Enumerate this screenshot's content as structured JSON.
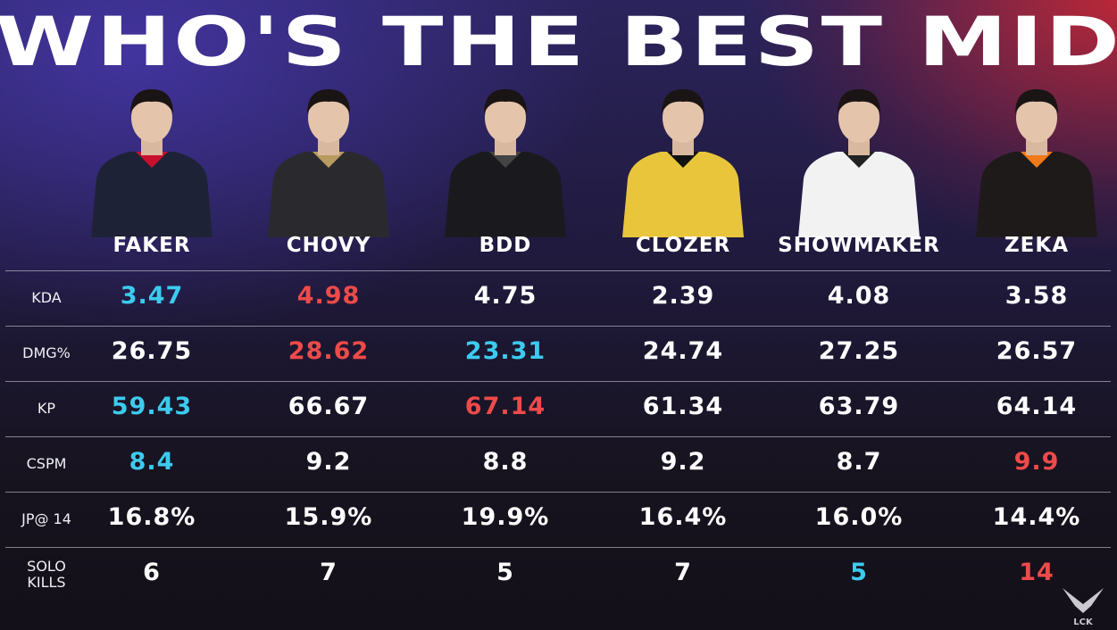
{
  "title": "WHO'S THE BEST MID",
  "colors": {
    "best": "#3ccbee",
    "worst": "#ef4a4a",
    "normal": "#ffffff"
  },
  "players": [
    {
      "name": "FAKER",
      "jersey": "#1e2236",
      "accent": "#c8102e"
    },
    {
      "name": "CHOVY",
      "jersey": "#2a2a2e",
      "accent": "#b89b5e"
    },
    {
      "name": "BDD",
      "jersey": "#1a1a1e",
      "accent": "#444"
    },
    {
      "name": "CLOZER",
      "jersey": "#e8c53a",
      "accent": "#111"
    },
    {
      "name": "SHOWMAKER",
      "jersey": "#f2f2f2",
      "accent": "#222"
    },
    {
      "name": "ZEKA",
      "jersey": "#1e1a1a",
      "accent": "#f07a1a"
    }
  ],
  "stats": [
    {
      "label": "KDA",
      "values": [
        "3.47",
        "4.98",
        "4.75",
        "2.39",
        "4.08",
        "3.58"
      ],
      "highlight": [
        "best",
        "worst",
        "normal",
        "normal",
        "normal",
        "normal"
      ]
    },
    {
      "label": "DMG%",
      "values": [
        "26.75",
        "28.62",
        "23.31",
        "24.74",
        "27.25",
        "26.57"
      ],
      "highlight": [
        "normal",
        "worst",
        "best",
        "normal",
        "normal",
        "normal"
      ]
    },
    {
      "label": "KP",
      "values": [
        "59.43",
        "66.67",
        "67.14",
        "61.34",
        "63.79",
        "64.14"
      ],
      "highlight": [
        "best",
        "normal",
        "worst",
        "normal",
        "normal",
        "normal"
      ]
    },
    {
      "label": "CSPM",
      "values": [
        "8.4",
        "9.2",
        "8.8",
        "9.2",
        "8.7",
        "9.9"
      ],
      "highlight": [
        "best",
        "normal",
        "normal",
        "normal",
        "normal",
        "worst"
      ]
    },
    {
      "label": "JP@ 14",
      "values": [
        "16.8%",
        "15.9%",
        "19.9%",
        "16.4%",
        "16.0%",
        "14.4%"
      ],
      "highlight": [
        "normal",
        "normal",
        "normal",
        "normal",
        "normal",
        "normal"
      ]
    },
    {
      "label": "SOLO\nKILLS",
      "values": [
        "6",
        "7",
        "5",
        "7",
        "5",
        "14"
      ],
      "highlight": [
        "normal",
        "normal",
        "normal",
        "normal",
        "best",
        "worst"
      ]
    }
  ],
  "logo": {
    "text": "LCK"
  }
}
